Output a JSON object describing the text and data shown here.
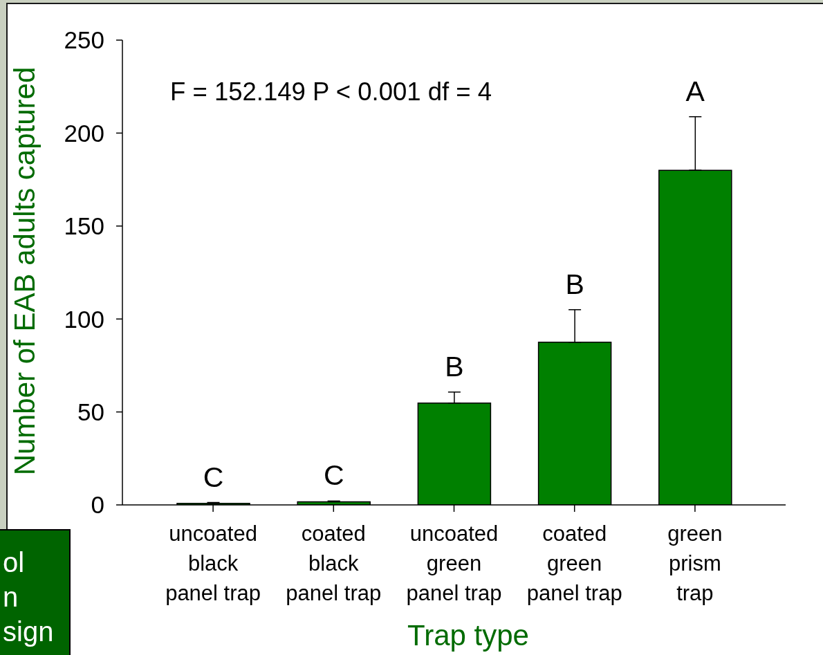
{
  "chart_data": {
    "type": "bar",
    "xlabel": "Trap type",
    "ylabel": "Number of EAB adults captured",
    "categories": [
      "uncoated\nblack\npanel trap",
      "coated\nblack\npanel trap",
      "uncoated\ngreen\npanel trap",
      "coated\ngreen\npanel trap",
      "green\nprism\ntrap"
    ],
    "values": [
      0.8,
      1.7,
      54.8,
      87.5,
      180
    ],
    "color": "#008000",
    "errors": [
      [
        0.8,
        1.3
      ],
      [
        1.7,
        2.1
      ],
      [
        54.8,
        60.7
      ],
      [
        87.5,
        105
      ],
      [
        180,
        208.8
      ]
    ],
    "value_labels": [
      "C",
      "C",
      "B",
      "B",
      "A"
    ],
    "ylim": [
      0,
      250
    ],
    "yticks": [
      0,
      50,
      100,
      150,
      200,
      250
    ],
    "annotations": [
      "F = 152.149 P < 0.001 df = 4",
      "ol",
      "n",
      "sign"
    ]
  }
}
